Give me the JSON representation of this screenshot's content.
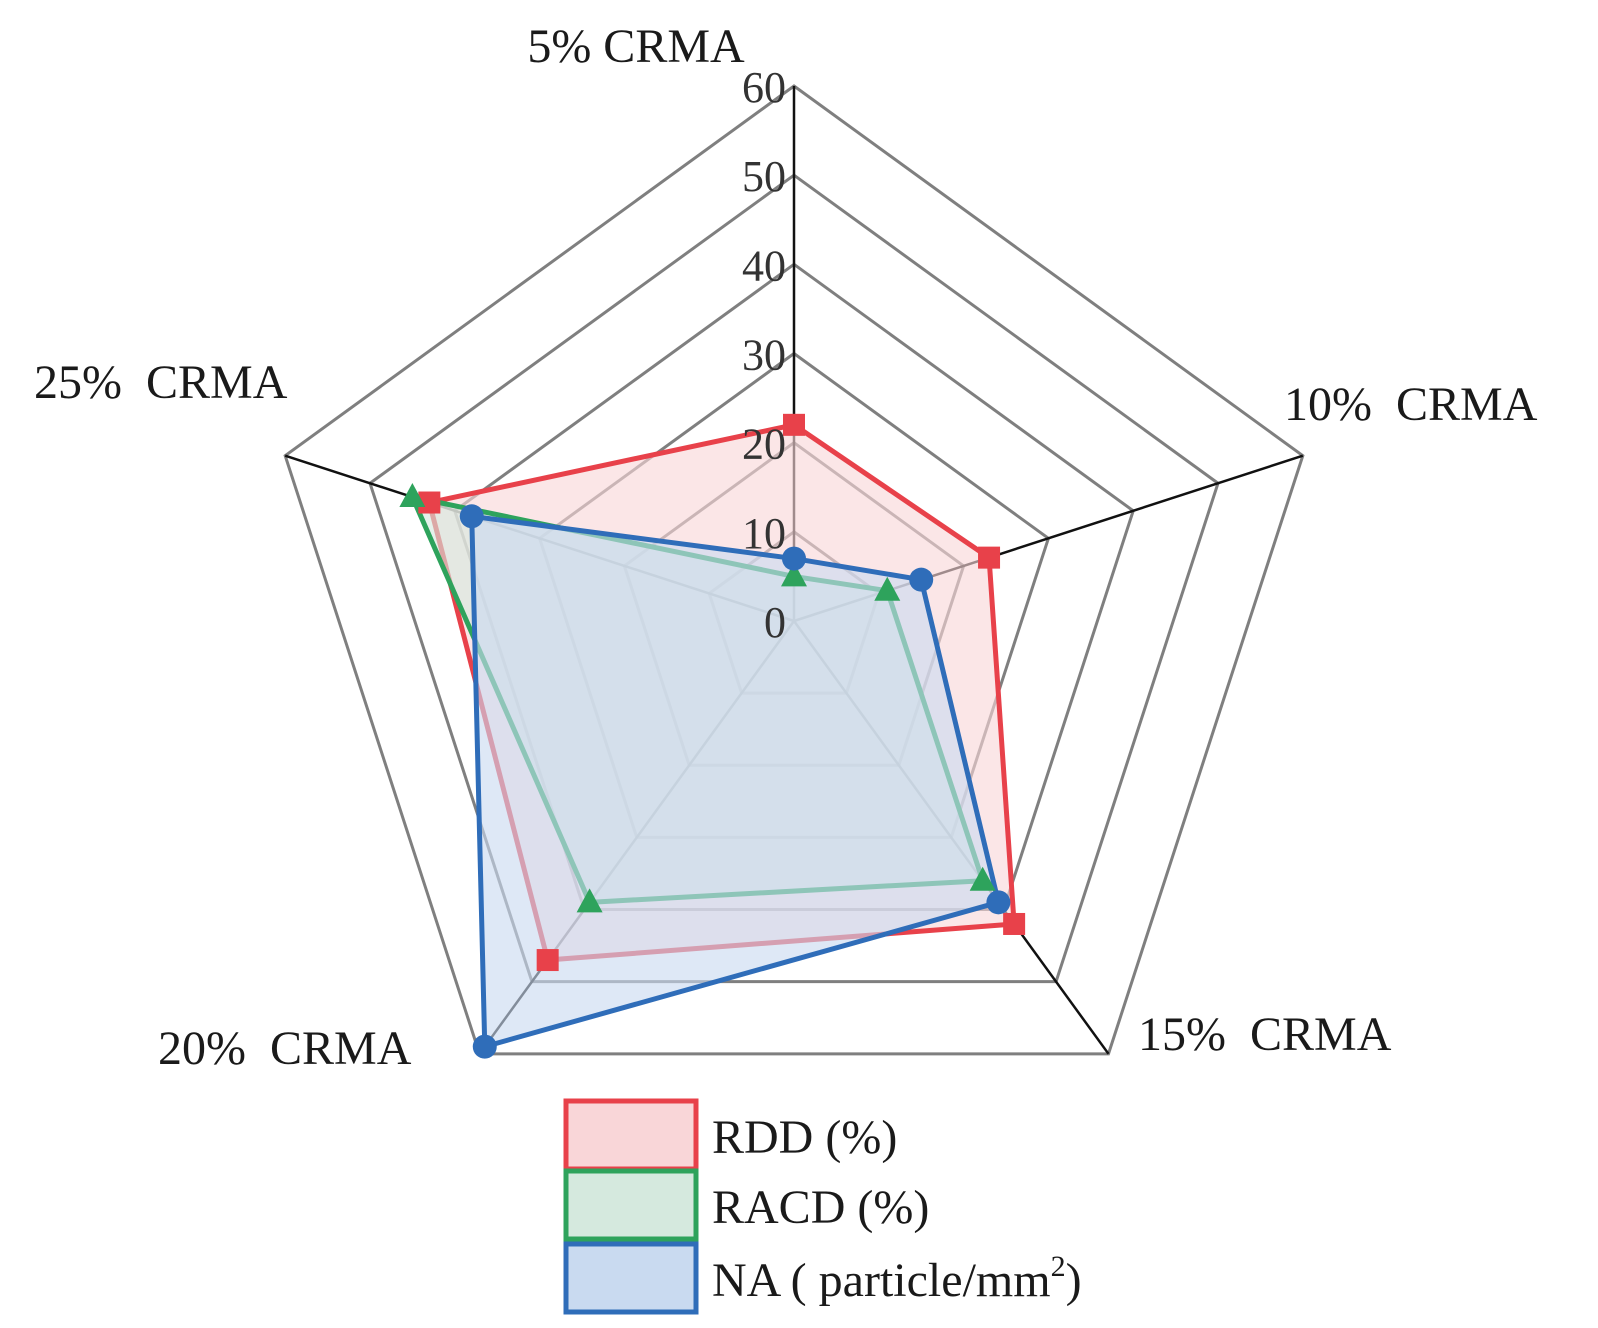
{
  "chart_data": {
    "type": "radar",
    "categories": [
      "5% CRMA",
      "10%  CRMA",
      "15%  CRMA",
      "20%  CRMA",
      "25%  CRMA"
    ],
    "rlim": [
      0,
      60
    ],
    "ticks": [
      "0",
      "10",
      "20",
      "30",
      "40",
      "50",
      "60"
    ],
    "grid": true,
    "legend_position": "bottom",
    "series": [
      {
        "name": "RDD (%)",
        "values": [
          22,
          23,
          42,
          47,
          43
        ],
        "marker": "square",
        "color": "#E8414A",
        "fill": "#F9D6D8"
      },
      {
        "name": "RACD (%)",
        "values": [
          5,
          11,
          36,
          39,
          45
        ],
        "marker": "triangle",
        "color": "#2EA35C",
        "fill": "#D5E9DE"
      },
      {
        "name": "NA ( particle/mm",
        "name_superscript": "2",
        "name_suffix": ")",
        "values": [
          7,
          15,
          39,
          59,
          38
        ],
        "marker": "circle",
        "color": "#2F6DB9",
        "fill": "#C9DAF0"
      }
    ]
  }
}
